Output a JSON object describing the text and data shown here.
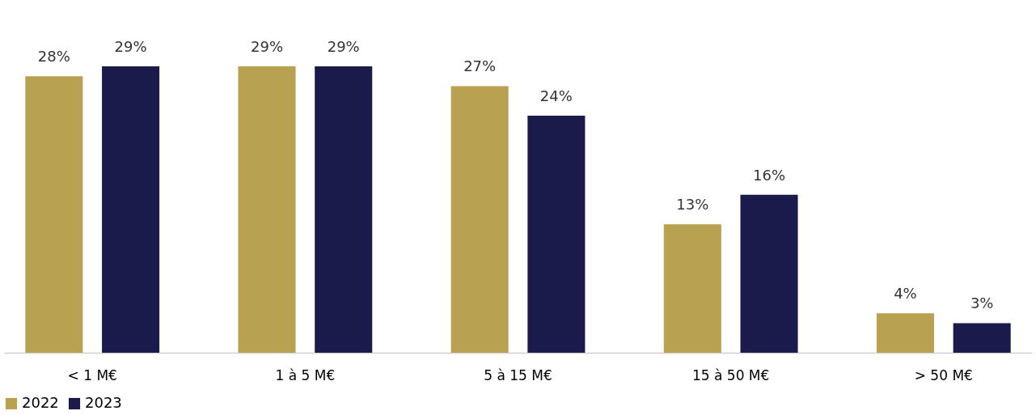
{
  "chart_data": {
    "type": "bar",
    "categories": [
      "< 1 M€",
      "1 à 5 M€",
      "5 à 15 M€",
      "15 à 50 M€",
      "> 50 M€"
    ],
    "series": [
      {
        "name": "2022",
        "color": "#b8a150",
        "values": [
          28,
          29,
          27,
          13,
          4
        ],
        "value_labels": [
          "28%",
          "29%",
          "27%",
          "13%",
          "4%"
        ]
      },
      {
        "name": "2023",
        "color": "#1a1a4b",
        "values": [
          29,
          29,
          24,
          16,
          3
        ],
        "value_labels": [
          "29%",
          "29%",
          "24%",
          "16%",
          "3%"
        ]
      }
    ],
    "legend": "bottom",
    "grid": false
  }
}
